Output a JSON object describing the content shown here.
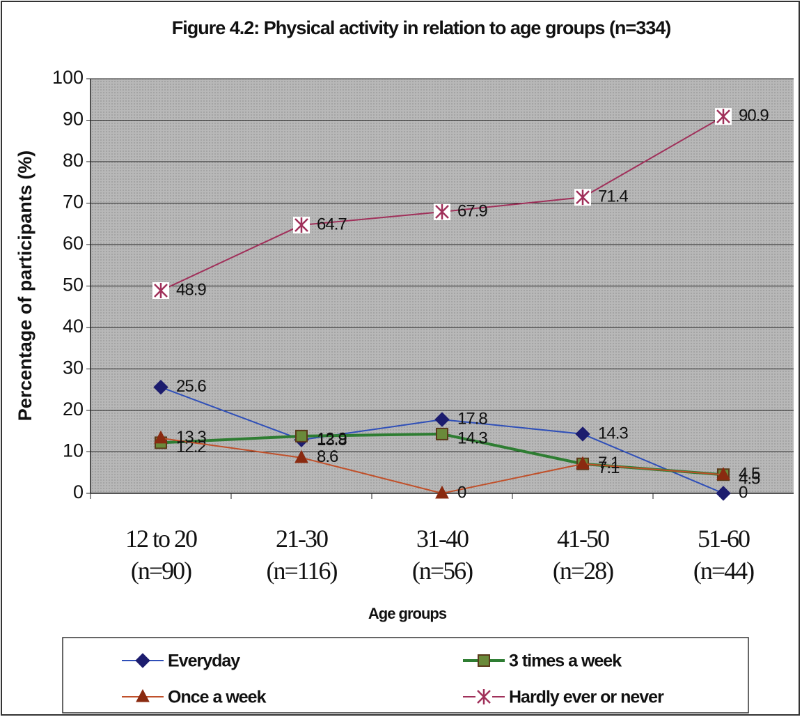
{
  "chart_data": {
    "type": "line",
    "title": "Figure 4.2:    Physical activity in relation to age groups (n=334)",
    "y_label": "Percentage of participants (%)",
    "x_label": "Age groups",
    "categories": [
      "12 to 20\n(n=90)",
      "21-30\n(n=116)",
      "31-40\n(n=56)",
      "41-50\n(n=28)",
      "51-60\n(n=44)"
    ],
    "series": [
      {
        "name": "Everyday",
        "color": "#2f4fb8",
        "marker": "diamond",
        "marker_color": "#1c1c6e",
        "values": [
          25.6,
          12.9,
          17.8,
          14.3,
          0
        ]
      },
      {
        "name": "3 times a week",
        "color": "#2e7d32",
        "marker": "square",
        "marker_color": "#6b5a2a",
        "values": [
          12.2,
          13.8,
          14.3,
          7.1,
          4.5
        ]
      },
      {
        "name": "Once a week",
        "color": "#c0502a",
        "marker": "triangle",
        "marker_color": "#8a2a10",
        "values": [
          13.3,
          8.6,
          0,
          7.1,
          4.5
        ]
      },
      {
        "name": "Hardly ever or never",
        "color": "#a0305a",
        "marker": "asterisk",
        "marker_color": "#a0305a",
        "values": [
          48.9,
          64.7,
          67.9,
          71.4,
          90.9
        ]
      }
    ],
    "ylim": [
      0,
      100
    ],
    "yticks": [
      0,
      10,
      20,
      30,
      40,
      50,
      60,
      70,
      80,
      90,
      100
    ],
    "grid": true,
    "legend": "bottom"
  }
}
